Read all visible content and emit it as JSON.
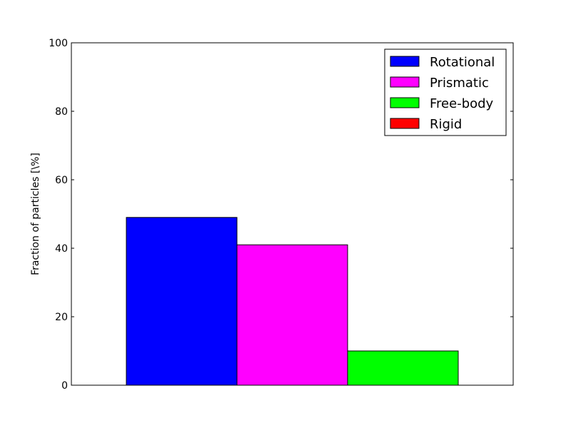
{
  "chart_data": {
    "type": "bar",
    "ylabel": "Fraction of particles [\\%]",
    "xlabel": "",
    "ylim": [
      0,
      100
    ],
    "yticks": [
      0,
      20,
      40,
      60,
      80,
      100
    ],
    "grid": false,
    "legend_position": "top-right",
    "series": [
      {
        "name": "Rotational",
        "value": 49,
        "color": "#0000ff"
      },
      {
        "name": "Prismatic",
        "value": 41,
        "color": "#ff00ff"
      },
      {
        "name": "Free-body",
        "value": 10,
        "color": "#00ff00"
      },
      {
        "name": "Rigid",
        "value": 0,
        "color": "#ff0000"
      }
    ]
  }
}
